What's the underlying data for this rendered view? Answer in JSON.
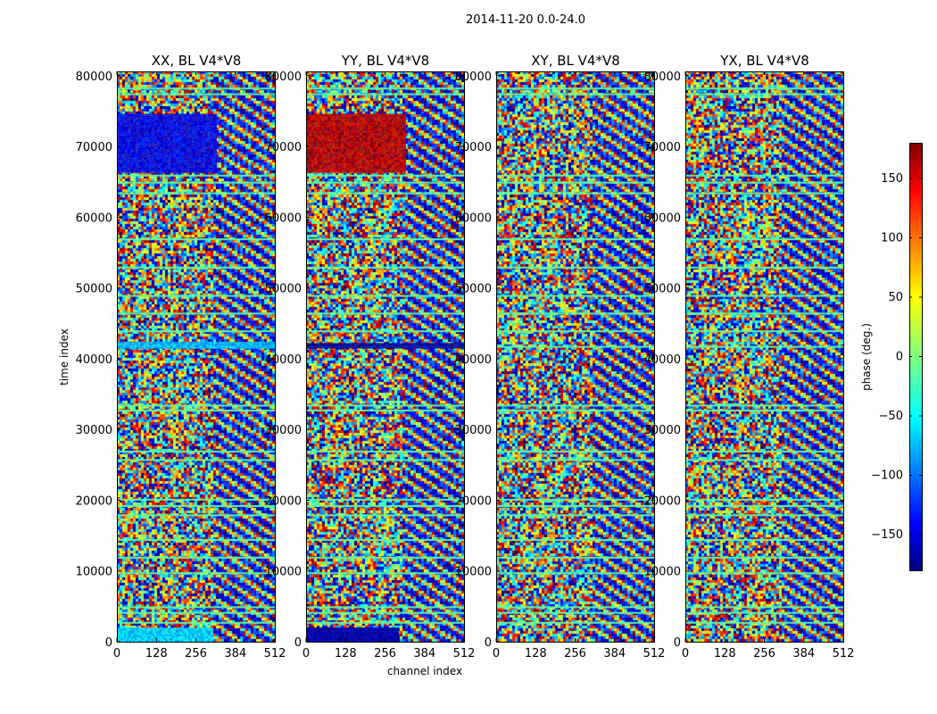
{
  "chart_data": {
    "type": "heatmap",
    "suptitle": "2014-11-20 0.0-24.0",
    "panels": [
      {
        "title": "XX, BL V4*V8",
        "pol": "XX"
      },
      {
        "title": "YY, BL V4*V8",
        "pol": "YY"
      },
      {
        "title": "XY, BL V4*V8",
        "pol": "XY"
      },
      {
        "title": "YX, BL V4*V8",
        "pol": "YX"
      }
    ],
    "xlabel": "channel index",
    "ylabel": "time index",
    "xlim": [
      0,
      512
    ],
    "ylim": [
      0,
      80600
    ],
    "xticks": [
      0,
      128,
      256,
      384,
      512
    ],
    "xtick_labels": [
      "0",
      "128",
      "256",
      "384",
      "512"
    ],
    "yticks": [
      0,
      10000,
      20000,
      30000,
      40000,
      50000,
      60000,
      70000,
      80000
    ],
    "ytick_labels": [
      "0",
      "10000",
      "20000",
      "30000",
      "40000",
      "50000",
      "60000",
      "70000",
      "80000"
    ],
    "colorbar": {
      "label": "phase (deg.)",
      "vmin": -180,
      "vmax": 180,
      "ticks": [
        -150,
        -100,
        -50,
        0,
        50,
        100,
        150
      ],
      "tick_labels": [
        "−150",
        "−100",
        "−50",
        "0",
        "50",
        "100",
        "150"
      ],
      "colormap": "jet"
    },
    "coherent_regions": [
      {
        "panel": "XX",
        "time": [
          66500,
          74600
        ],
        "channels": [
          0,
          320
        ],
        "phase": -140
      },
      {
        "panel": "YY",
        "time": [
          66500,
          74600
        ],
        "channels": [
          0,
          320
        ],
        "phase": 160
      },
      {
        "panel": "XX",
        "time": [
          0,
          2000
        ],
        "channels": [
          0,
          310
        ],
        "phase": -60
      },
      {
        "panel": "YY",
        "time": [
          0,
          2000
        ],
        "channels": [
          0,
          300
        ],
        "phase": -165
      },
      {
        "panel": "XX",
        "time": [
          41400,
          42400
        ],
        "channels": [
          0,
          512
        ],
        "phase": -70
      },
      {
        "panel": "YY",
        "time": [
          41500,
          42200
        ],
        "channels": [
          0,
          512
        ],
        "phase": -170
      }
    ],
    "flagged_time_bands": [
      2800,
      4200,
      5000,
      9800,
      12000,
      14500,
      18000,
      19300,
      20200,
      25800,
      27000,
      32800,
      33500,
      41800,
      44000,
      46500,
      49000,
      53000,
      57000,
      63500,
      65000,
      66000,
      77500,
      78300
    ]
  }
}
